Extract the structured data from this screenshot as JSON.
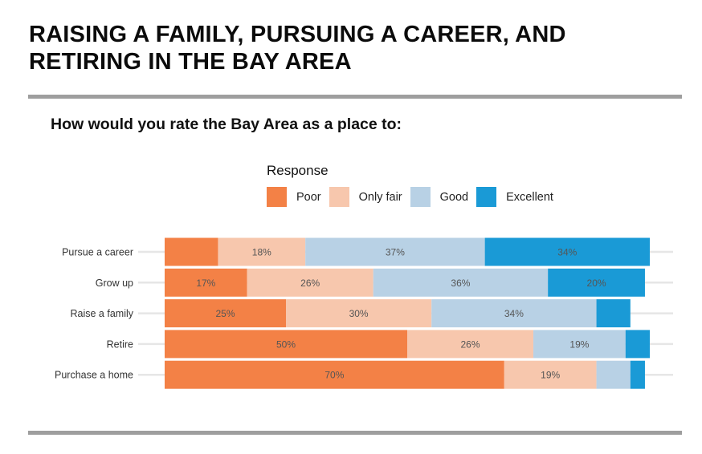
{
  "header": {
    "title_line1": "RAISING A FAMILY, PURSUING A CAREER, AND",
    "title_line2": "RETIRING IN THE BAY AREA"
  },
  "subtitle": "How would you rate the Bay Area as a place to:",
  "legend": {
    "title": "Response",
    "items": [
      {
        "label": "Poor",
        "color": "#f38146"
      },
      {
        "label": "Only fair",
        "color": "#f7c7ad"
      },
      {
        "label": "Good",
        "color": "#b8d1e5"
      },
      {
        "label": "Excellent",
        "color": "#1a9ad6"
      }
    ]
  },
  "chart_data": {
    "type": "bar",
    "orientation": "horizontal",
    "stacked": true,
    "title": "How would you rate the Bay Area as a place to:",
    "legend_title": "Response",
    "legend_position": "top",
    "categories": [
      "Pursue a career",
      "Grow up",
      "Raise a family",
      "Retire",
      "Purchase a home"
    ],
    "series": [
      {
        "name": "Poor",
        "color": "#f38146",
        "values": [
          11,
          17,
          25,
          50,
          70
        ],
        "labels": [
          "",
          "17%",
          "25%",
          "50%",
          "70%"
        ]
      },
      {
        "name": "Only fair",
        "color": "#f7c7ad",
        "values": [
          18,
          26,
          30,
          26,
          19
        ],
        "labels": [
          "18%",
          "26%",
          "30%",
          "26%",
          "19%"
        ]
      },
      {
        "name": "Good",
        "color": "#b8d1e5",
        "values": [
          37,
          36,
          34,
          19,
          7
        ],
        "labels": [
          "37%",
          "36%",
          "34%",
          "19%",
          ""
        ]
      },
      {
        "name": "Excellent",
        "color": "#1a9ad6",
        "values": [
          34,
          20,
          7,
          5,
          3
        ],
        "labels": [
          "34%",
          "20%",
          "",
          "",
          ""
        ]
      }
    ],
    "xlim": [
      0,
      100
    ]
  }
}
